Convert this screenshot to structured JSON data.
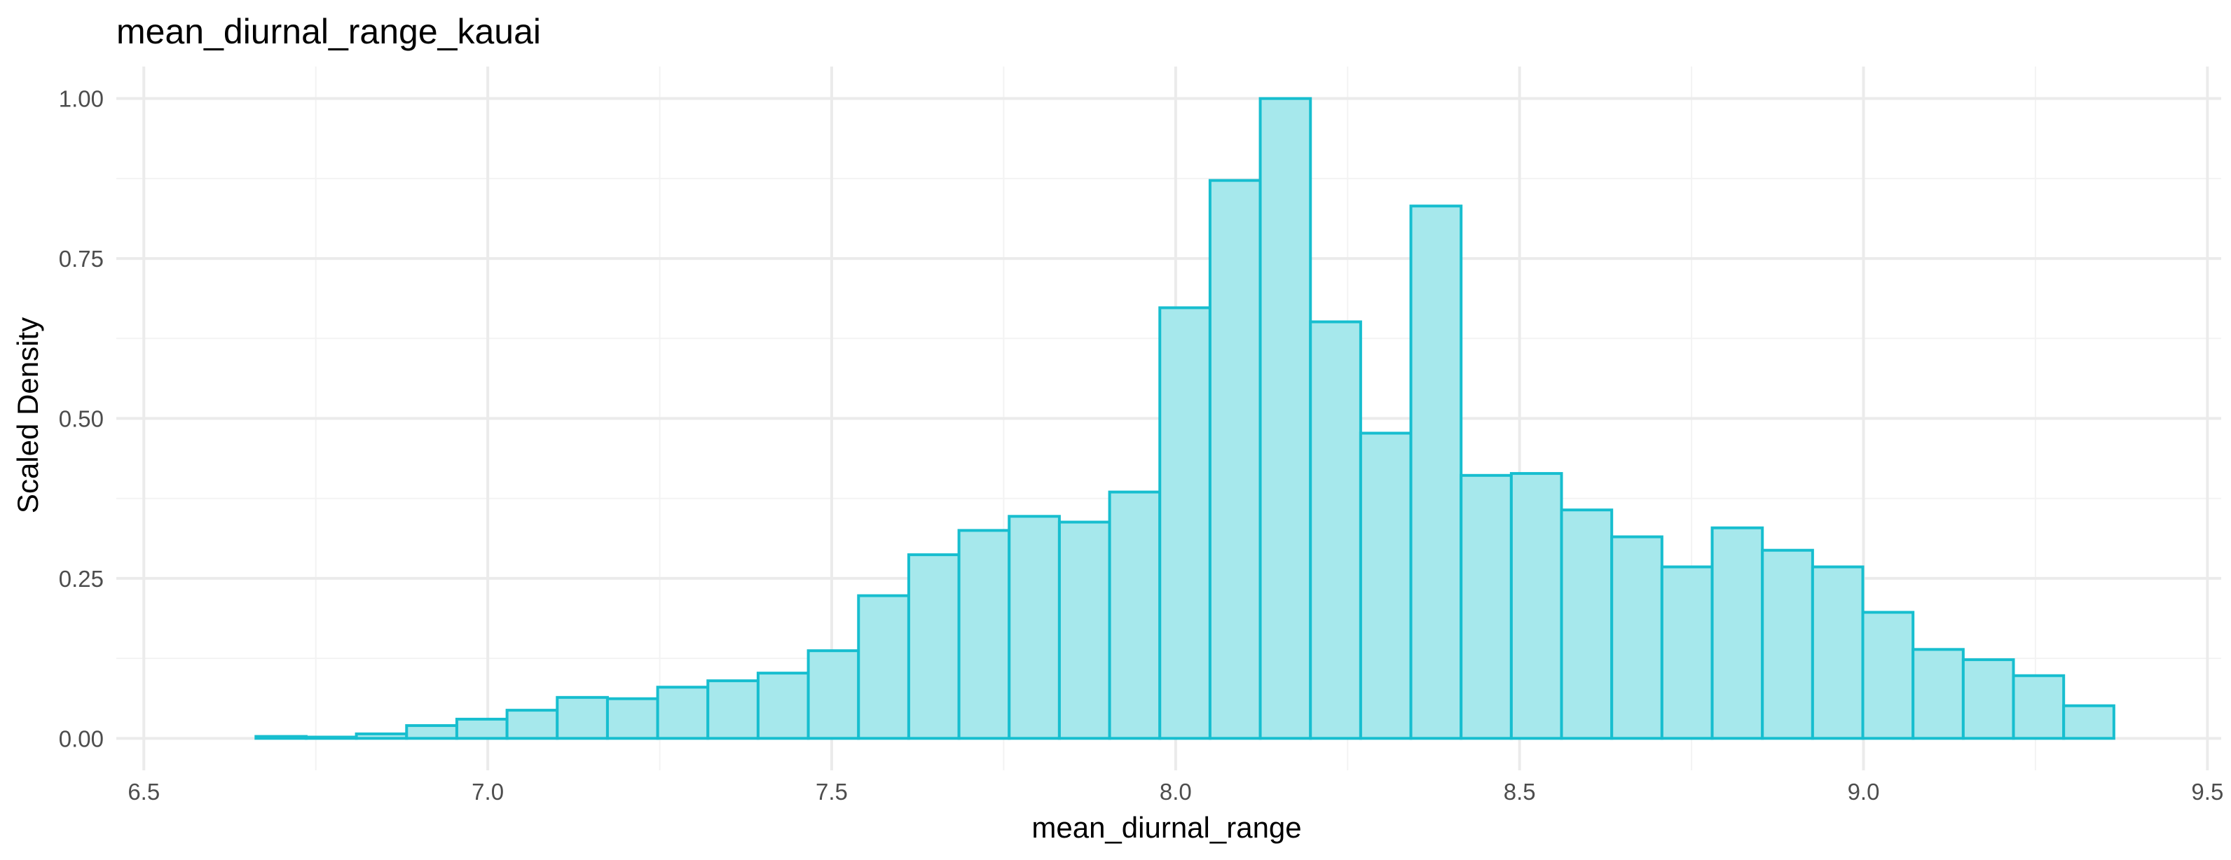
{
  "chart_data": {
    "type": "bar",
    "title": "mean_diurnal_range_kauai",
    "xlabel": "mean_diurnal_range",
    "ylabel": "Scaled Density",
    "xlim": [
      6.46,
      9.52
    ],
    "ylim": [
      -0.05,
      1.05
    ],
    "x_ticks": [
      6.5,
      7.0,
      7.5,
      8.0,
      8.5,
      9.0,
      9.5
    ],
    "x_tick_labels": [
      "6.5",
      "7.0",
      "7.5",
      "8.0",
      "8.5",
      "9.0",
      "9.5"
    ],
    "y_ticks": [
      0.0,
      0.25,
      0.5,
      0.75,
      1.0
    ],
    "y_tick_labels": [
      "0.00",
      "0.25",
      "0.50",
      "0.75",
      "1.00"
    ],
    "bin_start": 6.59,
    "bin_width": 0.073,
    "values": [
      0.0,
      0.003,
      0.002,
      0.007,
      0.02,
      0.03,
      0.044,
      0.064,
      0.062,
      0.08,
      0.09,
      0.102,
      0.137,
      0.223,
      0.287,
      0.325,
      0.347,
      0.338,
      0.385,
      0.673,
      0.872,
      1.0,
      0.651,
      0.477,
      0.832,
      0.411,
      0.414,
      0.357,
      0.315,
      0.268,
      0.329,
      0.294,
      0.268,
      0.197,
      0.139,
      0.123,
      0.098,
      0.051
    ],
    "fill_color": "#a6e8ec",
    "stroke_color": "#17becf",
    "grid": true,
    "legend": "none"
  }
}
